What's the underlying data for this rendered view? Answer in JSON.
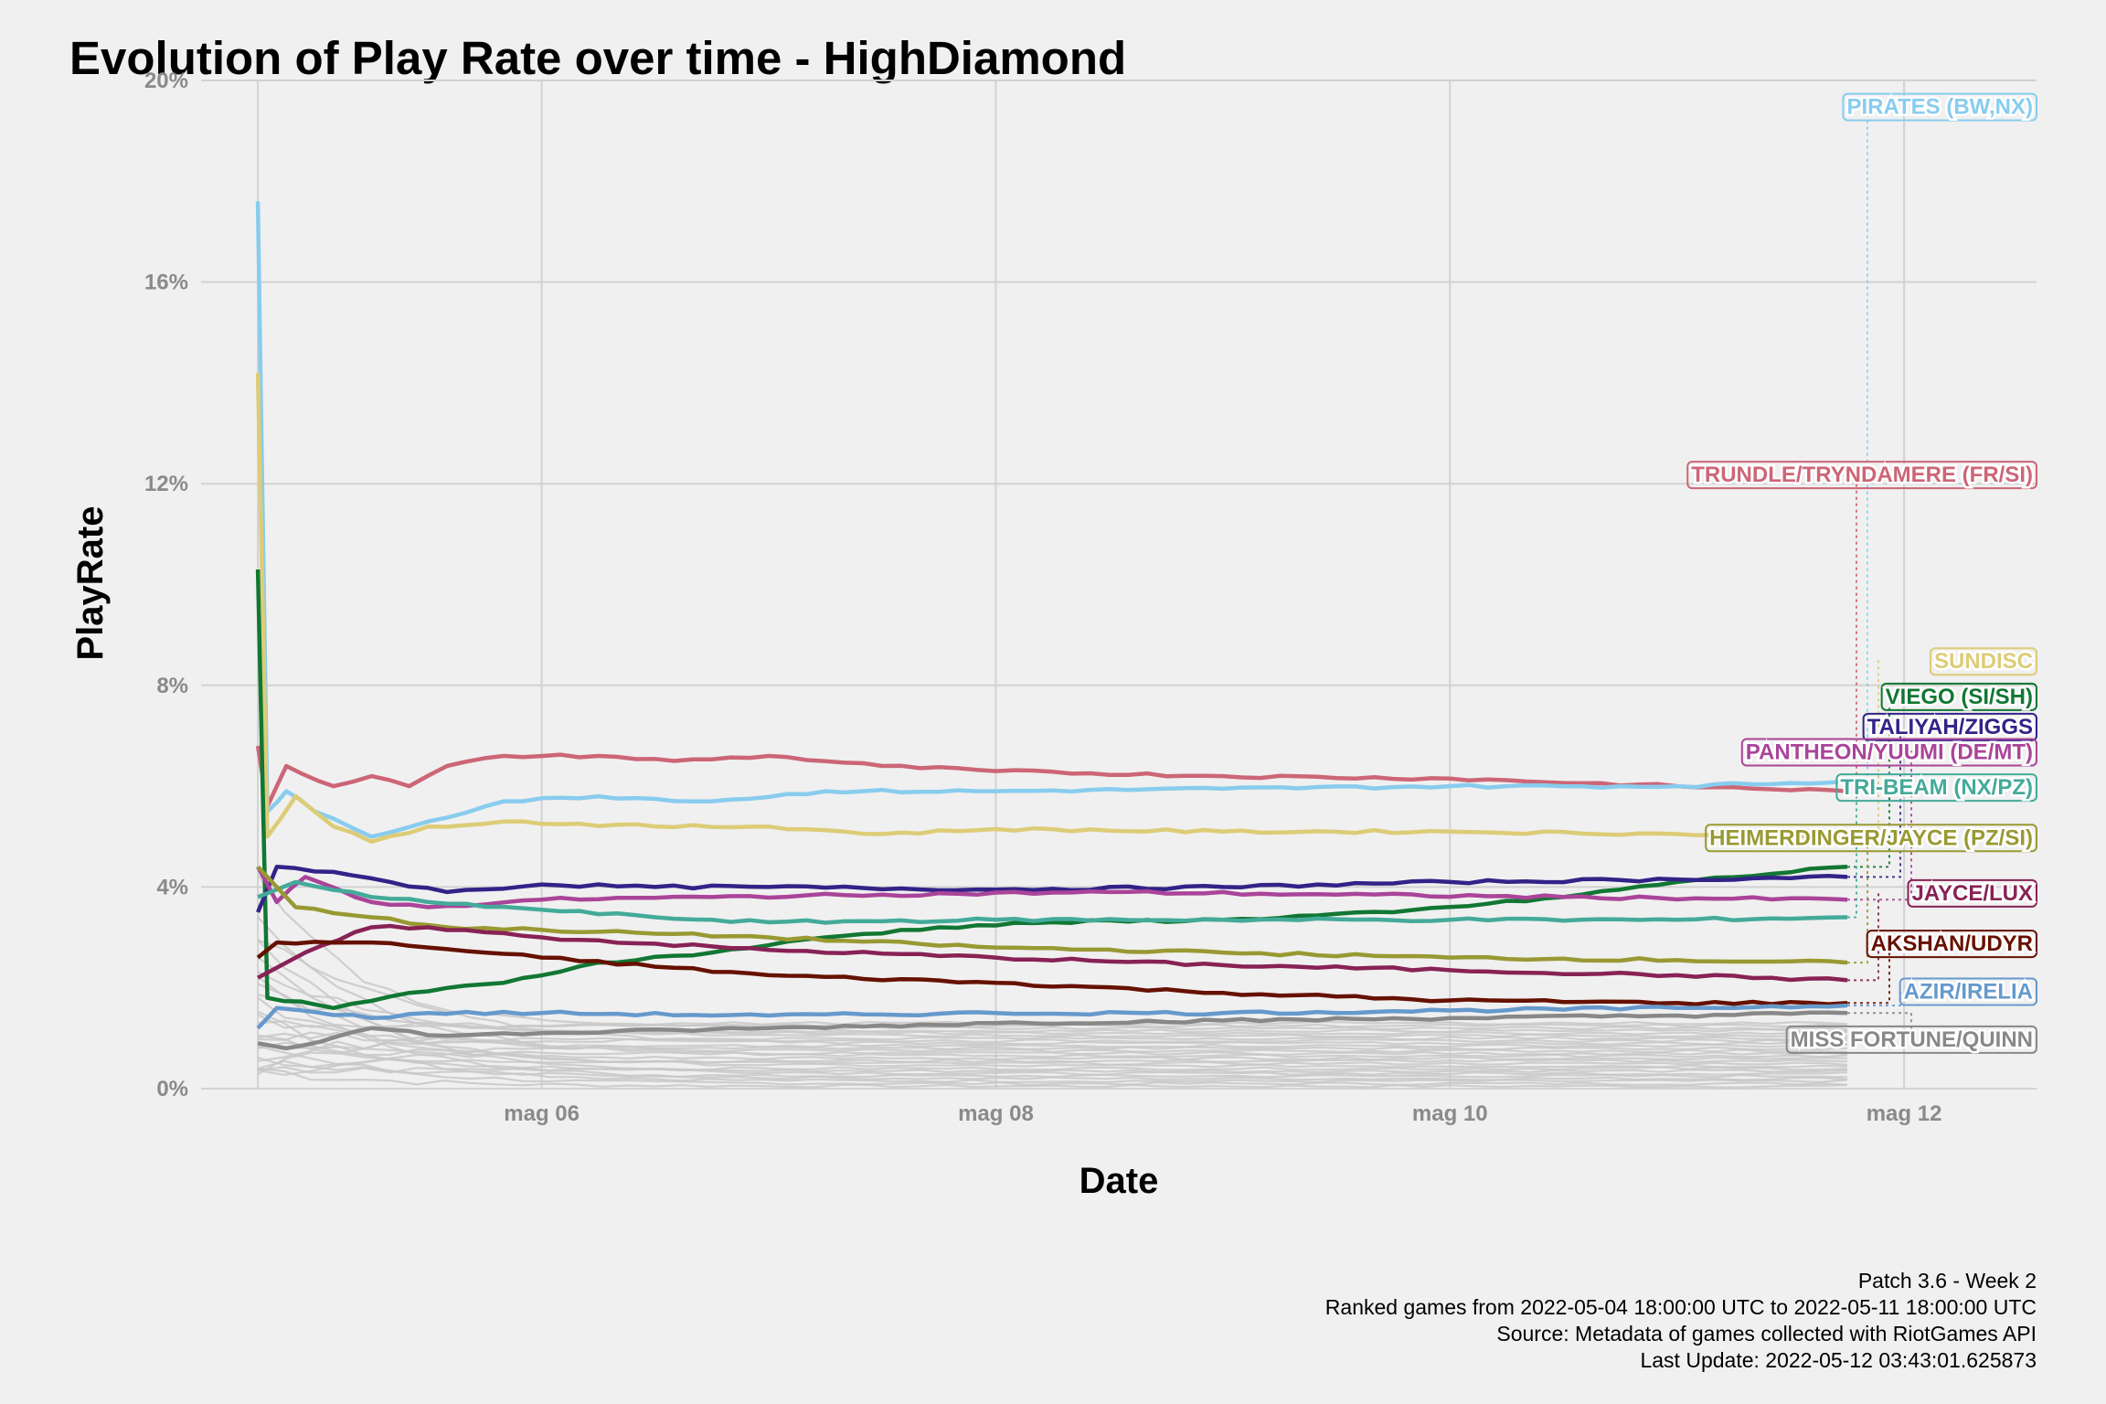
{
  "chart_data": {
    "type": "line",
    "title": "Evolution of Play Rate over time - HighDiamond",
    "xlabel": "Date",
    "ylabel": "PlayRate",
    "x_ticks": [
      {
        "date": "2022-05-06",
        "label": "mag 06"
      },
      {
        "date": "2022-05-08",
        "label": "mag 08"
      },
      {
        "date": "2022-05-10",
        "label": "mag 10"
      },
      {
        "date": "2022-05-12",
        "label": "mag 12"
      }
    ],
    "xlim": [
      "2022-05-04 12:00",
      "2022-05-12 14:00"
    ],
    "ylim": [
      0,
      20
    ],
    "y_ticks": [
      0,
      4,
      8,
      12,
      16,
      20
    ],
    "y_tick_labels": [
      "0%",
      "4%",
      "8%",
      "12%",
      "16%",
      "20%"
    ],
    "grid": true,
    "legend": "direct labels at right",
    "series": [
      {
        "name": "TRUNDLE/TRYNDAMERE (FR/SI)",
        "color": "#cc6677",
        "label_y": 12.2,
        "points": [
          [
            "2022-05-04 18:00",
            6.8
          ],
          [
            "2022-05-04 19:00",
            5.6
          ],
          [
            "2022-05-04 21:00",
            6.4
          ],
          [
            "2022-05-05 02:00",
            6.0
          ],
          [
            "2022-05-05 06:00",
            6.2
          ],
          [
            "2022-05-05 10:00",
            6.0
          ],
          [
            "2022-05-05 14:00",
            6.4
          ],
          [
            "2022-05-05 20:00",
            6.6
          ],
          [
            "2022-05-06 06:00",
            6.6
          ],
          [
            "2022-05-06 14:00",
            6.5
          ],
          [
            "2022-05-07 00:00",
            6.6
          ],
          [
            "2022-05-07 12:00",
            6.4
          ],
          [
            "2022-05-08 00:00",
            6.3
          ],
          [
            "2022-05-09 00:00",
            6.2
          ],
          [
            "2022-05-10 00:00",
            6.15
          ],
          [
            "2022-05-11 00:00",
            6.0
          ],
          [
            "2022-05-11 18:00",
            5.9
          ]
        ]
      },
      {
        "name": "PIRATES (BW,NX)",
        "color": "#88ccee",
        "label_y": 19.5,
        "points": [
          [
            "2022-05-04 18:00",
            17.6
          ],
          [
            "2022-05-04 19:00",
            5.5
          ],
          [
            "2022-05-04 21:00",
            5.9
          ],
          [
            "2022-05-05 00:00",
            5.5
          ],
          [
            "2022-05-05 06:00",
            5.0
          ],
          [
            "2022-05-05 12:00",
            5.3
          ],
          [
            "2022-05-05 20:00",
            5.7
          ],
          [
            "2022-05-06 06:00",
            5.8
          ],
          [
            "2022-05-06 18:00",
            5.7
          ],
          [
            "2022-05-07 06:00",
            5.9
          ],
          [
            "2022-05-08 00:00",
            5.9
          ],
          [
            "2022-05-09 00:00",
            5.95
          ],
          [
            "2022-05-10 00:00",
            6.0
          ],
          [
            "2022-05-11 00:00",
            6.0
          ],
          [
            "2022-05-11 18:00",
            6.1
          ]
        ]
      },
      {
        "name": "SUNDISC",
        "color": "#ddcc77",
        "label_y": 8.5,
        "points": [
          [
            "2022-05-04 18:00",
            14.2
          ],
          [
            "2022-05-04 19:00",
            5.0
          ],
          [
            "2022-05-04 22:00",
            5.8
          ],
          [
            "2022-05-05 02:00",
            5.2
          ],
          [
            "2022-05-05 06:00",
            4.9
          ],
          [
            "2022-05-05 12:00",
            5.2
          ],
          [
            "2022-05-05 20:00",
            5.3
          ],
          [
            "2022-05-06 12:00",
            5.2
          ],
          [
            "2022-05-07 00:00",
            5.2
          ],
          [
            "2022-05-07 12:00",
            5.05
          ],
          [
            "2022-05-08 00:00",
            5.15
          ],
          [
            "2022-05-09 00:00",
            5.1
          ],
          [
            "2022-05-10 00:00",
            5.1
          ],
          [
            "2022-05-11 00:00",
            5.05
          ],
          [
            "2022-05-11 18:00",
            5.0
          ]
        ]
      },
      {
        "name": "VIEGO (SI/SH)",
        "color": "#117733",
        "label_y": 7.8,
        "points": [
          [
            "2022-05-04 18:00",
            10.3
          ],
          [
            "2022-05-04 19:00",
            1.8
          ],
          [
            "2022-05-05 02:00",
            1.6
          ],
          [
            "2022-05-05 10:00",
            1.9
          ],
          [
            "2022-05-05 20:00",
            2.1
          ],
          [
            "2022-05-06 06:00",
            2.5
          ],
          [
            "2022-05-06 18:00",
            2.7
          ],
          [
            "2022-05-07 06:00",
            3.0
          ],
          [
            "2022-05-07 18:00",
            3.2
          ],
          [
            "2022-05-08 06:00",
            3.3
          ],
          [
            "2022-05-09 00:00",
            3.35
          ],
          [
            "2022-05-09 18:00",
            3.5
          ],
          [
            "2022-05-10 12:00",
            3.8
          ],
          [
            "2022-05-11 00:00",
            4.1
          ],
          [
            "2022-05-11 18:00",
            4.4
          ]
        ]
      },
      {
        "name": "TALIYAH/ZIGGS",
        "color": "#332288",
        "label_y": 7.2,
        "points": [
          [
            "2022-05-04 18:00",
            3.5
          ],
          [
            "2022-05-04 20:00",
            4.4
          ],
          [
            "2022-05-05 02:00",
            4.3
          ],
          [
            "2022-05-05 08:00",
            4.1
          ],
          [
            "2022-05-05 14:00",
            3.9
          ],
          [
            "2022-05-06 00:00",
            4.05
          ],
          [
            "2022-05-06 12:00",
            4.0
          ],
          [
            "2022-05-07 00:00",
            4.0
          ],
          [
            "2022-05-08 00:00",
            3.95
          ],
          [
            "2022-05-09 00:00",
            4.0
          ],
          [
            "2022-05-10 00:00",
            4.1
          ],
          [
            "2022-05-11 00:00",
            4.15
          ],
          [
            "2022-05-11 18:00",
            4.2
          ]
        ]
      },
      {
        "name": "PANTHEON/YUUMI (DE/MT)",
        "color": "#aa4499",
        "label_y": 6.7,
        "points": [
          [
            "2022-05-04 18:00",
            4.4
          ],
          [
            "2022-05-04 20:00",
            3.7
          ],
          [
            "2022-05-04 23:00",
            4.2
          ],
          [
            "2022-05-05 06:00",
            3.7
          ],
          [
            "2022-05-05 12:00",
            3.6
          ],
          [
            "2022-05-06 00:00",
            3.75
          ],
          [
            "2022-05-06 18:00",
            3.8
          ],
          [
            "2022-05-07 12:00",
            3.85
          ],
          [
            "2022-05-08 12:00",
            3.9
          ],
          [
            "2022-05-09 12:00",
            3.85
          ],
          [
            "2022-05-10 12:00",
            3.8
          ],
          [
            "2022-05-11 18:00",
            3.75
          ]
        ]
      },
      {
        "name": "TRI-BEAM (NX/PZ)",
        "color": "#44aa99",
        "label_y": 6.0,
        "points": [
          [
            "2022-05-04 18:00",
            3.8
          ],
          [
            "2022-05-04 22:00",
            4.1
          ],
          [
            "2022-05-05 06:00",
            3.8
          ],
          [
            "2022-05-05 12:00",
            3.7
          ],
          [
            "2022-05-06 00:00",
            3.55
          ],
          [
            "2022-05-06 12:00",
            3.4
          ],
          [
            "2022-05-07 00:00",
            3.3
          ],
          [
            "2022-05-08 00:00",
            3.35
          ],
          [
            "2022-05-09 00:00",
            3.35
          ],
          [
            "2022-05-10 00:00",
            3.35
          ],
          [
            "2022-05-11 00:00",
            3.35
          ],
          [
            "2022-05-11 18:00",
            3.4
          ]
        ]
      },
      {
        "name": "HEIMERDINGER/JAYCE (PZ/SI)",
        "color": "#999933",
        "label_y": 5.0,
        "points": [
          [
            "2022-05-04 18:00",
            4.4
          ],
          [
            "2022-05-04 22:00",
            3.6
          ],
          [
            "2022-05-05 06:00",
            3.4
          ],
          [
            "2022-05-05 14:00",
            3.2
          ],
          [
            "2022-05-06 00:00",
            3.15
          ],
          [
            "2022-05-07 00:00",
            3.0
          ],
          [
            "2022-05-08 00:00",
            2.8
          ],
          [
            "2022-05-09 00:00",
            2.7
          ],
          [
            "2022-05-10 00:00",
            2.6
          ],
          [
            "2022-05-11 00:00",
            2.55
          ],
          [
            "2022-05-11 18:00",
            2.5
          ]
        ]
      },
      {
        "name": "JAYCE/LUX",
        "color": "#882255",
        "label_y": 3.9,
        "points": [
          [
            "2022-05-04 18:00",
            2.2
          ],
          [
            "2022-05-04 23:00",
            2.7
          ],
          [
            "2022-05-05 06:00",
            3.2
          ],
          [
            "2022-05-05 12:00",
            3.2
          ],
          [
            "2022-05-06 00:00",
            3.0
          ],
          [
            "2022-05-07 00:00",
            2.75
          ],
          [
            "2022-05-08 00:00",
            2.6
          ],
          [
            "2022-05-09 00:00",
            2.45
          ],
          [
            "2022-05-10 00:00",
            2.35
          ],
          [
            "2022-05-11 00:00",
            2.25
          ],
          [
            "2022-05-11 18:00",
            2.15
          ]
        ]
      },
      {
        "name": "AKSHAN/UDYR",
        "color": "#661100",
        "label_y": 2.9,
        "points": [
          [
            "2022-05-04 18:00",
            2.6
          ],
          [
            "2022-05-04 20:00",
            2.9
          ],
          [
            "2022-05-05 06:00",
            2.9
          ],
          [
            "2022-05-05 12:00",
            2.8
          ],
          [
            "2022-05-06 00:00",
            2.6
          ],
          [
            "2022-05-07 00:00",
            2.25
          ],
          [
            "2022-05-08 00:00",
            2.1
          ],
          [
            "2022-05-09 00:00",
            1.9
          ],
          [
            "2022-05-10 00:00",
            1.75
          ],
          [
            "2022-05-11 00:00",
            1.7
          ],
          [
            "2022-05-11 18:00",
            1.7
          ]
        ]
      },
      {
        "name": "AZIR/IRELIA",
        "color": "#6699cc",
        "label_y": 1.95,
        "points": [
          [
            "2022-05-04 18:00",
            1.2
          ],
          [
            "2022-05-04 20:00",
            1.6
          ],
          [
            "2022-05-05 06:00",
            1.4
          ],
          [
            "2022-05-05 12:00",
            1.5
          ],
          [
            "2022-05-06 00:00",
            1.5
          ],
          [
            "2022-05-07 00:00",
            1.45
          ],
          [
            "2022-05-08 00:00",
            1.5
          ],
          [
            "2022-05-09 00:00",
            1.5
          ],
          [
            "2022-05-10 00:00",
            1.55
          ],
          [
            "2022-05-11 00:00",
            1.6
          ],
          [
            "2022-05-11 18:00",
            1.65
          ]
        ]
      },
      {
        "name": "MISS FORTUNE/QUINN",
        "color": "#888888",
        "label_y": 1.0,
        "points": [
          [
            "2022-05-04 18:00",
            0.9
          ],
          [
            "2022-05-04 21:00",
            0.8
          ],
          [
            "2022-05-05 06:00",
            1.2
          ],
          [
            "2022-05-05 14:00",
            1.05
          ],
          [
            "2022-05-06 00:00",
            1.1
          ],
          [
            "2022-05-07 00:00",
            1.2
          ],
          [
            "2022-05-08 00:00",
            1.3
          ],
          [
            "2022-05-09 00:00",
            1.35
          ],
          [
            "2022-05-10 00:00",
            1.4
          ],
          [
            "2022-05-11 00:00",
            1.45
          ],
          [
            "2022-05-11 18:00",
            1.5
          ]
        ]
      }
    ],
    "background_series": {
      "color": "#c8c8c8",
      "note": "many unlabeled low play-rate lines",
      "end_levels": [
        0.05,
        0.1,
        0.15,
        0.2,
        0.25,
        0.3,
        0.35,
        0.4,
        0.45,
        0.5,
        0.55,
        0.6,
        0.65,
        0.7,
        0.75,
        0.8,
        0.85,
        0.9,
        0.95,
        1.0,
        1.05,
        1.1,
        1.15,
        1.2,
        1.25,
        1.3
      ],
      "start_levels": [
        0.4,
        0.9,
        1.6,
        2.2,
        0.6,
        3.0,
        1.2,
        0.3,
        2.6,
        1.8,
        0.5,
        1.0,
        3.5,
        0.8,
        2.0,
        1.4,
        0.2,
        4.2,
        1.1,
        0.7,
        2.4,
        1.9,
        0.4,
        3.1,
        1.3,
        0.9
      ]
    }
  },
  "captions": [
    "Patch 3.6 - Week 2",
    "Ranked games from 2022-05-04 18:00:00 UTC to 2022-05-11 18:00:00 UTC",
    "Source: Metadata of games collected with RiotGames API",
    "Last Update: 2022-05-12 03:43:01.625873"
  ]
}
